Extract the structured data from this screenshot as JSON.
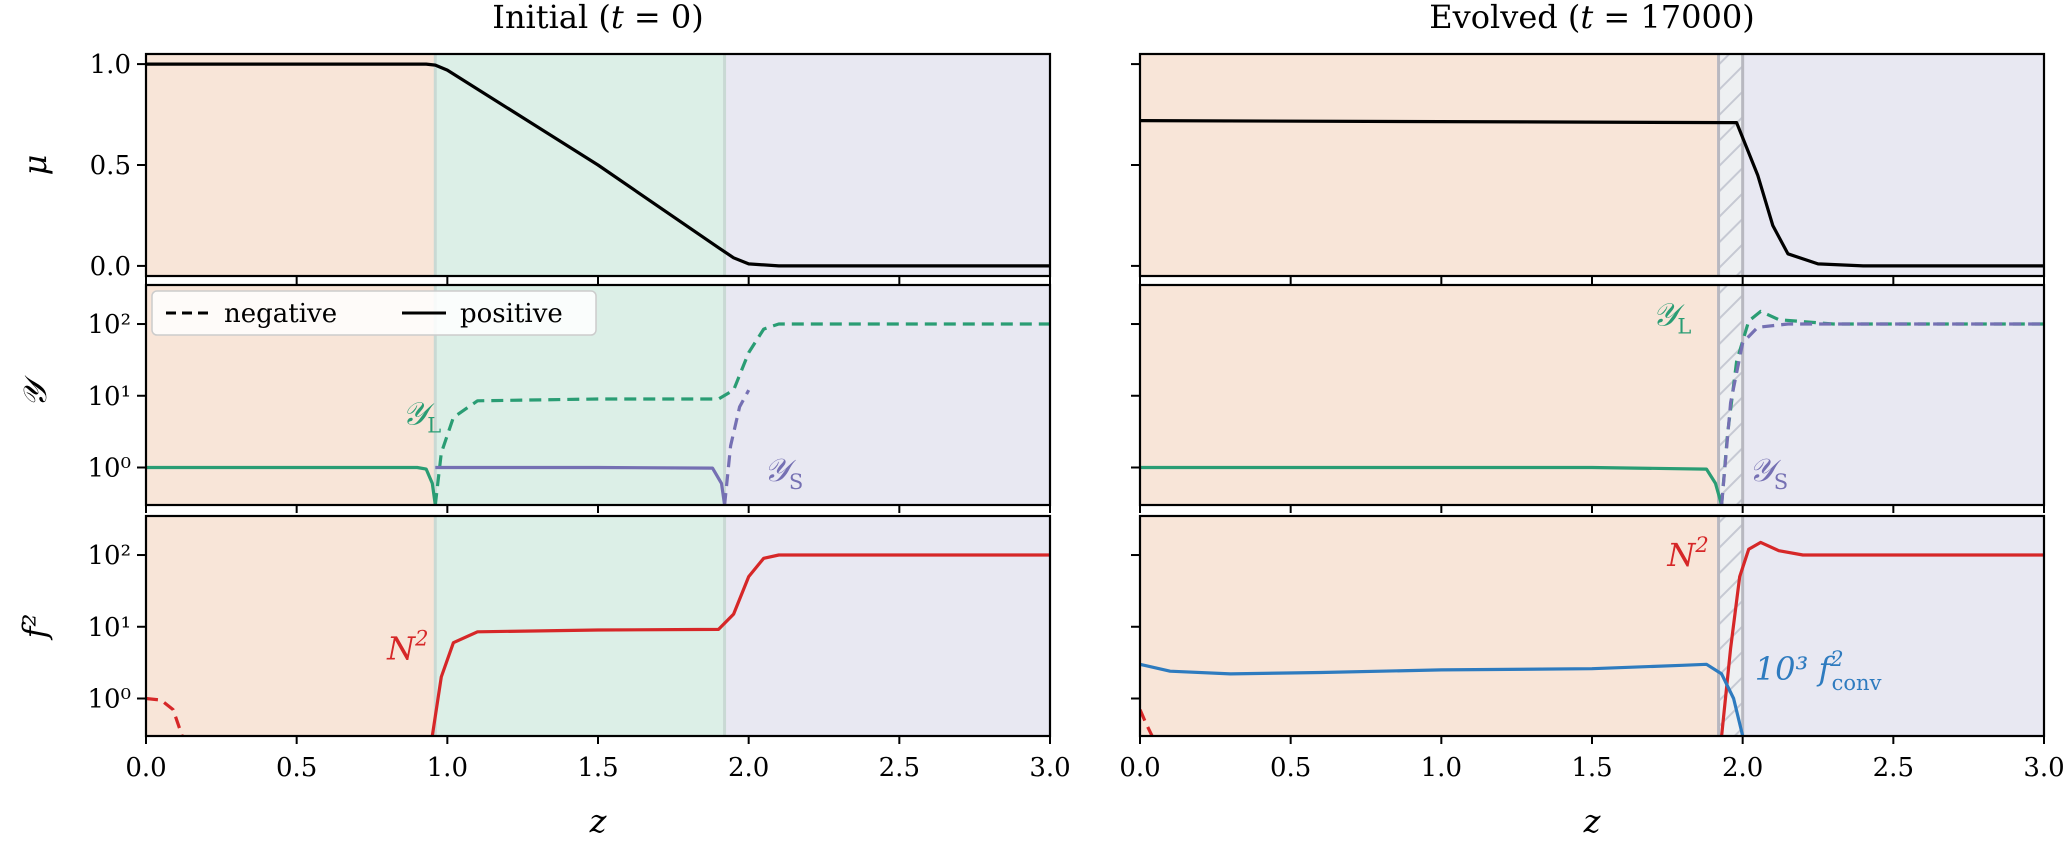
{
  "chart_data": [
    {
      "type": "line",
      "title": "Initial (t = 0)",
      "xlabel": "z",
      "xlim": [
        0,
        3
      ],
      "xticks": [
        "0.0",
        "0.5",
        "1.0",
        "1.5",
        "2.0",
        "2.5",
        "3.0"
      ],
      "regions": [
        {
          "x": [
            0,
            0.96
          ],
          "color": "#f8e5d8"
        },
        {
          "x": [
            0.96,
            1.92
          ],
          "color": "#dcefe7"
        },
        {
          "x": [
            1.92,
            3.0
          ],
          "color": "#e8e8f2"
        }
      ],
      "panels": [
        {
          "ylabel": "μ",
          "yscale": "linear",
          "ylim": [
            -0.05,
            1.05
          ],
          "yticks": [
            "0.0",
            "0.5",
            "1.0"
          ],
          "series": [
            {
              "color": "#000000",
              "dash": "solid",
              "x": [
                0,
                0.93,
                0.96,
                1.0,
                1.5,
                1.9,
                1.95,
                2.0,
                2.1,
                3.0
              ],
              "y": [
                1.0,
                1.0,
                0.995,
                0.97,
                0.5,
                0.09,
                0.04,
                0.01,
                0.0,
                0.0
              ]
            }
          ]
        },
        {
          "ylabel": "𝒴",
          "yscale": "log",
          "ylim": [
            0.3,
            350
          ],
          "yticks": [
            "10⁰",
            "10¹",
            "10²"
          ],
          "legend": {
            "position": "top-left",
            "entries": [
              {
                "label": "negative",
                "dash": "dashed"
              },
              {
                "label": "positive",
                "dash": "solid"
              }
            ]
          },
          "annotations": [
            {
              "text": "𝒴",
              "sub": "L",
              "x": 0.85,
              "y": 4.0,
              "color": "#2a9d74"
            },
            {
              "text": "𝒴",
              "sub": "S",
              "x": 2.05,
              "y": 0.65,
              "color": "#7570b3"
            }
          ],
          "series": [
            {
              "name": "𝒴L",
              "color": "#2a9d74",
              "dash": "solid",
              "x": [
                0,
                0.9,
                0.93,
                0.95,
                0.96
              ],
              "y": [
                1.0,
                1.0,
                0.95,
                0.6,
                0.3
              ]
            },
            {
              "name": "𝒴L",
              "color": "#2a9d74",
              "dash": "dashed",
              "x": [
                0.96,
                0.98,
                1.02,
                1.1,
                1.5,
                1.9,
                1.95,
                2.0,
                2.05,
                2.1,
                3.0
              ],
              "y": [
                0.3,
                1.6,
                5.0,
                8.5,
                9.0,
                9.0,
                12.0,
                40.0,
                85.0,
                100.0,
                100.0
              ]
            },
            {
              "name": "𝒴S",
              "color": "#7570b3",
              "dash": "solid",
              "x": [
                0.96,
                1.5,
                1.88,
                1.91,
                1.92
              ],
              "y": [
                1.0,
                1.0,
                0.98,
                0.6,
                0.3
              ]
            },
            {
              "name": "𝒴S",
              "color": "#7570b3",
              "dash": "dashed",
              "x": [
                1.92,
                1.94,
                1.97,
                2.0
              ],
              "y": [
                0.3,
                2.0,
                7.0,
                12.0
              ]
            }
          ]
        },
        {
          "ylabel": "f²",
          "yscale": "log",
          "ylim": [
            0.3,
            350
          ],
          "yticks": [
            "10⁰",
            "10¹",
            "10²"
          ],
          "annotations": [
            {
              "text": "N",
              "sup": "2",
              "x": 0.8,
              "y": 3.5,
              "color": "#d62728"
            }
          ],
          "series": [
            {
              "name": "N²",
              "color": "#d62728",
              "dash": "dashed",
              "x": [
                0,
                0.05,
                0.09,
                0.12
              ],
              "y": [
                1.0,
                0.95,
                0.7,
                0.3
              ]
            },
            {
              "name": "N²",
              "color": "#d62728",
              "dash": "solid",
              "x": [
                0.95,
                0.98,
                1.02,
                1.1,
                1.5,
                1.9,
                1.95,
                2.0,
                2.05,
                2.1,
                3.0
              ],
              "y": [
                0.3,
                2.0,
                6.0,
                8.5,
                9.0,
                9.2,
                15.0,
                50.0,
                90.0,
                100.0,
                100.0
              ]
            }
          ]
        }
      ]
    },
    {
      "type": "line",
      "title": "Evolved (t = 17000)",
      "xlabel": "z",
      "xlim": [
        0,
        3
      ],
      "xticks": [
        "0.0",
        "0.5",
        "1.0",
        "1.5",
        "2.0",
        "2.5",
        "3.0"
      ],
      "regions": [
        {
          "x": [
            0,
            1.92
          ],
          "color": "#f8e5d8"
        },
        {
          "x": [
            1.92,
            2.0
          ],
          "color": "#eef0f2",
          "hatch": true
        },
        {
          "x": [
            2.0,
            3.0
          ],
          "color": "#e8e8f2"
        }
      ],
      "panels": [
        {
          "ylabel": "μ",
          "yscale": "linear",
          "ylim": [
            -0.05,
            1.05
          ],
          "yticks": [
            "0.0",
            "0.5",
            "1.0"
          ],
          "series": [
            {
              "color": "#000000",
              "dash": "solid",
              "x": [
                0,
                1.95,
                1.98,
                2.05,
                2.1,
                2.15,
                2.25,
                2.4,
                3.0
              ],
              "y": [
                0.72,
                0.71,
                0.71,
                0.45,
                0.2,
                0.06,
                0.01,
                0.0,
                0.0
              ]
            }
          ]
        },
        {
          "ylabel": "𝒴",
          "yscale": "log",
          "ylim": [
            0.3,
            350
          ],
          "yticks": [
            "10⁰",
            "10¹",
            "10²"
          ],
          "annotations": [
            {
              "text": "𝒴",
              "sub": "L",
              "x": 1.7,
              "y": 95.0,
              "color": "#2a9d74"
            },
            {
              "text": "𝒴",
              "sub": "S",
              "x": 2.02,
              "y": 0.65,
              "color": "#7570b3"
            }
          ],
          "series": [
            {
              "name": "𝒴L",
              "color": "#2a9d74",
              "dash": "solid",
              "x": [
                0,
                1.5,
                1.88,
                1.91,
                1.93
              ],
              "y": [
                1.0,
                1.0,
                0.95,
                0.6,
                0.3
              ]
            },
            {
              "name": "𝒴L",
              "color": "#2a9d74",
              "dash": "dashed",
              "x": [
                1.93,
                1.95,
                1.98,
                2.02,
                2.06,
                2.12,
                2.3,
                3.0
              ],
              "y": [
                0.3,
                3.0,
                30.0,
                110.0,
                150.0,
                115.0,
                100.0,
                100.0
              ]
            },
            {
              "name": "𝒴S",
              "color": "#7570b3",
              "dash": "dashed",
              "x": [
                1.93,
                1.96,
                2.0,
                2.05,
                2.15,
                3.0
              ],
              "y": [
                0.3,
                8.0,
                55.0,
                90.0,
                100.0,
                100.0
              ]
            }
          ]
        },
        {
          "ylabel": "f²",
          "yscale": "log",
          "ylim": [
            0.3,
            350
          ],
          "yticks": [
            "10⁰",
            "10¹",
            "10²"
          ],
          "annotations": [
            {
              "text": "N",
              "sup": "2",
              "x": 1.75,
              "y": 70.0,
              "color": "#d62728"
            },
            {
              "text": "10³ f",
              "sup": "2",
              "sub": "conv",
              "x": 2.04,
              "y": 1.8,
              "color": "#2e7bbf"
            }
          ],
          "series": [
            {
              "name": "N²",
              "color": "#d62728",
              "dash": "dashed",
              "x": [
                0,
                0.02,
                0.04
              ],
              "y": [
                0.7,
                0.45,
                0.3
              ]
            },
            {
              "name": "N²",
              "color": "#d62728",
              "dash": "solid",
              "x": [
                1.93,
                1.96,
                1.99,
                2.02,
                2.06,
                2.12,
                2.2,
                2.5,
                3.0
              ],
              "y": [
                0.3,
                5.0,
                50.0,
                120.0,
                150.0,
                115.0,
                100.0,
                100.0,
                100.0
              ]
            },
            {
              "name": "10³ f²conv",
              "color": "#2e7bbf",
              "dash": "solid",
              "x": [
                0,
                0.1,
                0.3,
                0.6,
                1.0,
                1.5,
                1.8,
                1.88,
                1.93,
                1.97,
                2.0
              ],
              "y": [
                3.0,
                2.4,
                2.2,
                2.3,
                2.5,
                2.6,
                2.9,
                3.0,
                2.2,
                1.0,
                0.3
              ]
            }
          ]
        }
      ]
    }
  ]
}
